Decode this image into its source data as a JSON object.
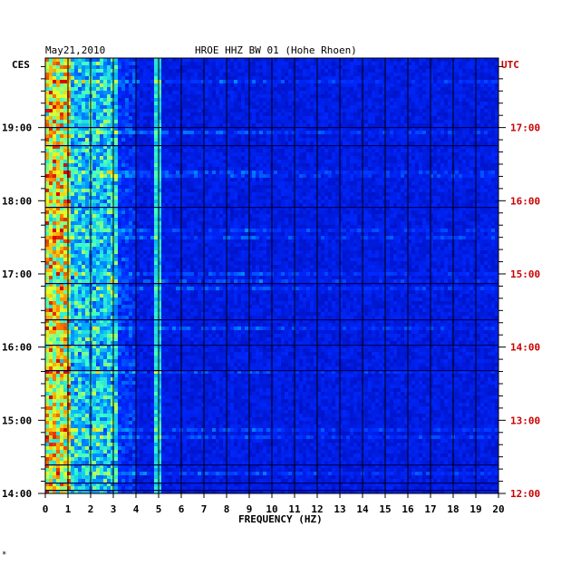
{
  "header": {
    "date": "May21,2010",
    "station": "HROE HHZ BW 01 (Hohe Rhoen)",
    "left_tz": "CES",
    "right_tz": "UTC",
    "footer_mark": "*"
  },
  "chart_data": {
    "type": "heatmap",
    "title": "HROE HHZ BW 01 (Hohe Rhoen)",
    "xlabel": "FREQUENCY (HZ)",
    "ylabel": "",
    "xlim": [
      0,
      20
    ],
    "x_ticks": [
      "0",
      "1",
      "2",
      "3",
      "4",
      "5",
      "6",
      "7",
      "8",
      "9",
      "10",
      "11",
      "12",
      "13",
      "14",
      "15",
      "16",
      "17",
      "18",
      "19",
      "20"
    ],
    "y_left_ticks": [
      "19:00",
      "18:00",
      "17:00",
      "16:00",
      "15:00",
      "14:00"
    ],
    "y_right_ticks": [
      "17:00",
      "16:00",
      "15:00",
      "14:00",
      "13:00",
      "12:00"
    ],
    "ylim_hours_cest": [
      14.0,
      19.95
    ],
    "colors": {
      "left_axis": "#000000",
      "right_axis": "#cc0000",
      "background": "#0000a8"
    }
  }
}
